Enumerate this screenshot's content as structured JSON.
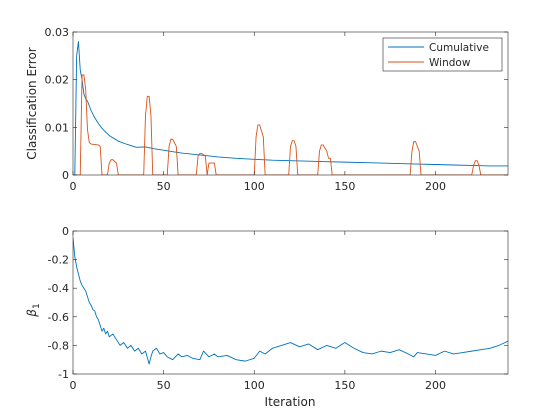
{
  "chart_data": [
    {
      "type": "line",
      "title": "",
      "xlabel": "",
      "ylabel": "Classification Error",
      "xlim": [
        0,
        240
      ],
      "ylim": [
        0,
        0.03
      ],
      "xticks": [
        0,
        50,
        100,
        150,
        200
      ],
      "xtick_labels": [
        "0",
        "50",
        "100",
        "150",
        "200"
      ],
      "yticks": [
        0,
        0.01,
        0.02,
        0.03
      ],
      "ytick_labels": [
        "0",
        "0.01",
        "0.02",
        "0.03"
      ],
      "legend": {
        "position": "top-right",
        "entries": [
          "Cumulative",
          "Window"
        ]
      },
      "grid": false,
      "series": [
        {
          "name": "Cumulative",
          "color": "#0072BD",
          "x": [
            0,
            1,
            2,
            3,
            4,
            5,
            6,
            7,
            8,
            9,
            10,
            12,
            14,
            16,
            18,
            20,
            22,
            25,
            30,
            35,
            40,
            45,
            50,
            55,
            60,
            70,
            80,
            90,
            100,
            110,
            120,
            130,
            140,
            150,
            160,
            170,
            180,
            190,
            200,
            210,
            220,
            230,
            240
          ],
          "y": [
            0,
            0.0,
            0.025,
            0.028,
            0.022,
            0.02,
            0.017,
            0.016,
            0.0155,
            0.0145,
            0.0135,
            0.012,
            0.0108,
            0.0098,
            0.009,
            0.0083,
            0.0078,
            0.0071,
            0.0064,
            0.0058,
            0.0059,
            0.0055,
            0.0052,
            0.0049,
            0.0046,
            0.0042,
            0.0038,
            0.0035,
            0.0033,
            0.0031,
            0.003,
            0.0029,
            0.0028,
            0.0027,
            0.0026,
            0.0025,
            0.0024,
            0.0023,
            0.0022,
            0.0021,
            0.002,
            0.0019,
            0.0019
          ]
        },
        {
          "name": "Window",
          "color": "#D95319",
          "x": [
            0,
            4,
            5,
            6,
            7,
            8,
            9,
            10,
            14,
            15,
            16,
            19,
            20,
            21,
            22,
            24,
            25,
            39,
            40,
            41,
            42,
            43,
            44,
            52,
            53,
            54,
            55,
            57,
            58,
            68,
            69,
            70,
            71,
            73,
            74,
            75,
            76,
            78,
            79,
            100,
            101,
            102,
            103,
            105,
            106,
            119,
            120,
            121,
            122,
            123,
            124,
            135,
            136,
            137,
            138,
            140,
            141,
            142,
            143,
            186,
            187,
            188,
            189,
            191,
            192,
            220,
            221,
            222,
            223,
            224,
            225,
            240
          ],
          "y": [
            0,
            0,
            0.021,
            0.021,
            0.018,
            0.0095,
            0.0068,
            0.0065,
            0.0063,
            0.006,
            0,
            0,
            0.0025,
            0.0032,
            0.0032,
            0.0025,
            0,
            0,
            0.0125,
            0.0165,
            0.0165,
            0.0125,
            0,
            0,
            0.006,
            0.0075,
            0.0075,
            0.006,
            0,
            0,
            0.004,
            0.0045,
            0.0045,
            0.004,
            0,
            0.0025,
            0.0025,
            0.0025,
            0,
            0,
            0.008,
            0.0105,
            0.0105,
            0.008,
            0,
            0,
            0.006,
            0.0072,
            0.0072,
            0.006,
            0,
            0,
            0.005,
            0.0063,
            0.0063,
            0.005,
            0.0035,
            0.0035,
            0,
            0,
            0.005,
            0.007,
            0.007,
            0.005,
            0,
            0,
            0.002,
            0.003,
            0.003,
            0.002,
            0,
            0
          ]
        }
      ]
    },
    {
      "type": "line",
      "title": "",
      "xlabel": "Iteration",
      "ylabel": "β1",
      "ylabel_main": "β",
      "ylabel_sub": "1",
      "xlim": [
        0,
        240
      ],
      "ylim": [
        -1,
        0
      ],
      "xticks": [
        0,
        50,
        100,
        150,
        200
      ],
      "xtick_labels": [
        "0",
        "50",
        "100",
        "150",
        "200"
      ],
      "yticks": [
        -1,
        -0.8,
        -0.6,
        -0.4,
        -0.2,
        0
      ],
      "ytick_labels": [
        "-1",
        "-0.8",
        "-0.6",
        "-0.4",
        "-0.2",
        "0"
      ],
      "grid": false,
      "series": [
        {
          "name": "",
          "color": "#0072BD",
          "x": [
            0,
            1,
            2,
            3,
            4,
            5,
            6,
            7,
            8,
            9,
            10,
            11,
            12,
            13,
            14,
            15,
            16,
            17,
            18,
            19,
            20,
            22,
            24,
            26,
            28,
            30,
            32,
            34,
            36,
            38,
            40,
            42,
            43,
            44,
            46,
            48,
            50,
            52,
            55,
            58,
            60,
            63,
            66,
            70,
            72,
            75,
            78,
            80,
            85,
            90,
            95,
            100,
            103,
            106,
            110,
            115,
            120,
            125,
            130,
            135,
            140,
            145,
            150,
            155,
            160,
            165,
            170,
            175,
            180,
            185,
            188,
            190,
            195,
            200,
            205,
            210,
            215,
            220,
            225,
            230,
            235,
            240
          ],
          "y": [
            -0.05,
            -0.18,
            -0.25,
            -0.3,
            -0.35,
            -0.38,
            -0.4,
            -0.42,
            -0.46,
            -0.5,
            -0.52,
            -0.55,
            -0.56,
            -0.6,
            -0.62,
            -0.66,
            -0.7,
            -0.68,
            -0.72,
            -0.7,
            -0.74,
            -0.72,
            -0.76,
            -0.8,
            -0.78,
            -0.82,
            -0.8,
            -0.84,
            -0.82,
            -0.86,
            -0.84,
            -0.93,
            -0.88,
            -0.84,
            -0.82,
            -0.86,
            -0.85,
            -0.88,
            -0.9,
            -0.86,
            -0.88,
            -0.87,
            -0.89,
            -0.9,
            -0.84,
            -0.88,
            -0.86,
            -0.88,
            -0.87,
            -0.9,
            -0.91,
            -0.89,
            -0.84,
            -0.86,
            -0.82,
            -0.8,
            -0.78,
            -0.81,
            -0.79,
            -0.83,
            -0.8,
            -0.82,
            -0.78,
            -0.82,
            -0.85,
            -0.86,
            -0.84,
            -0.85,
            -0.83,
            -0.86,
            -0.88,
            -0.85,
            -0.86,
            -0.87,
            -0.84,
            -0.86,
            -0.85,
            -0.84,
            -0.83,
            -0.82,
            -0.8,
            -0.77
          ]
        }
      ]
    }
  ]
}
